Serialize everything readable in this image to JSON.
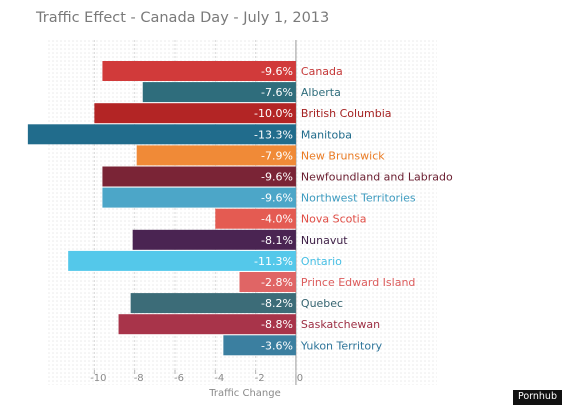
{
  "chart_data": {
    "type": "bar",
    "orientation": "horizontal",
    "title": "Traffic Effect - Canada Day - July 1, 2013",
    "xlabel": "Traffic Change",
    "ylabel": "",
    "xlim": [
      -12.4,
      7
    ],
    "xticks": [
      -10,
      -8,
      -6,
      -4,
      -2,
      0
    ],
    "grid": true,
    "legend": "none",
    "categories": [
      "Canada",
      "Alberta",
      "British Columbia",
      "Manitoba",
      "New Brunswick",
      "Newfoundland and Labrado",
      "Northwest Territories",
      "Nova Scotia",
      "Nunavut",
      "Ontario",
      "Prince Edward Island",
      "Quebec",
      "Saskatchewan",
      "Yukon Territory"
    ],
    "values": [
      -9.6,
      -7.6,
      -10.0,
      -13.3,
      -7.9,
      -9.6,
      -9.6,
      -4.0,
      -8.1,
      -11.3,
      -2.8,
      -8.2,
      -8.8,
      -3.6
    ],
    "value_labels": [
      "-9.6%",
      "-7.6%",
      "-10.0%",
      "-13.3%",
      "-7.9%",
      "-9.6%",
      "-9.6%",
      "-4.0%",
      "-8.1%",
      "-11.3%",
      "-2.8%",
      "-8.2%",
      "-8.8%",
      "-3.6%"
    ],
    "colors": [
      "#d13a3a",
      "#2f6d7c",
      "#b32525",
      "#216c8c",
      "#f08a37",
      "#7a2436",
      "#4ca6c8",
      "#e45b52",
      "#4a2452",
      "#54c8ea",
      "#e06565",
      "#3c6c78",
      "#a8344a",
      "#3b7fa0"
    ],
    "label_colors": [
      "#c53838",
      "#2f6d7c",
      "#a52222",
      "#216c8c",
      "#ea7c25",
      "#6a1e30",
      "#3f9cc0",
      "#e04d45",
      "#3e1f46",
      "#48bfe4",
      "#dc5c5c",
      "#35636f",
      "#9c2e43",
      "#2f759a"
    ]
  },
  "brand": "Pornhub"
}
